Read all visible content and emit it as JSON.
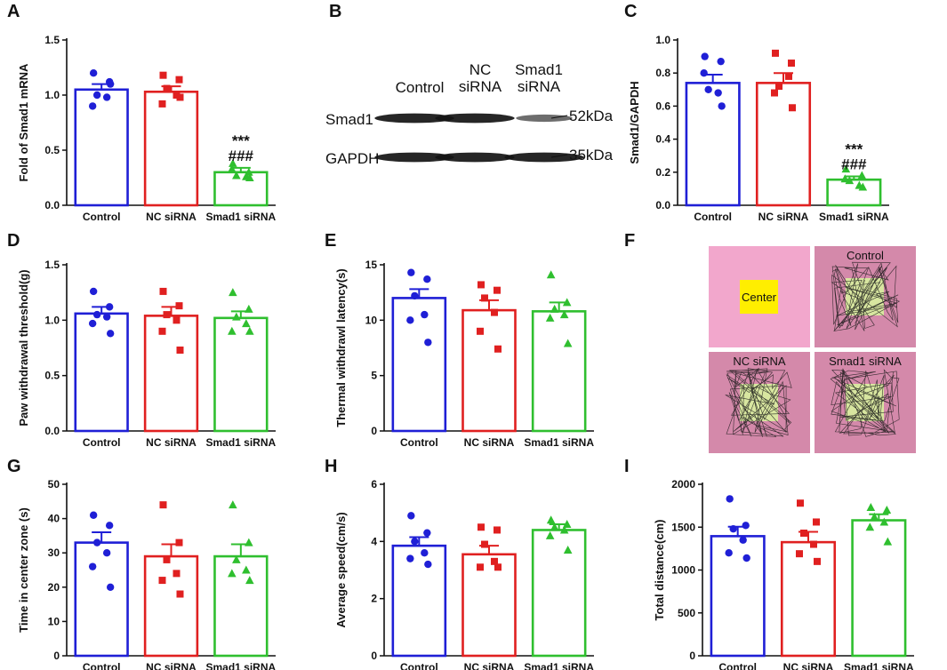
{
  "panel_labels": [
    "A",
    "B",
    "C",
    "D",
    "E",
    "F",
    "G",
    "H",
    "I"
  ],
  "colors": {
    "control": "#1f1fd6",
    "nc": "#e02020",
    "smad1": "#2fbf2f"
  },
  "chart_data": [
    {
      "id": "A",
      "type": "bar",
      "categories": [
        "Control",
        "NC siRNA",
        "Smad1 siRNA"
      ],
      "ylabel": "Fold of Smad1 mRNA",
      "ylim": [
        0,
        1.5
      ],
      "yticks": [
        "0.0",
        "0.5",
        "1.0",
        "1.5"
      ],
      "values": [
        1.05,
        1.03,
        0.3
      ],
      "errors": [
        0.05,
        0.05,
        0.04
      ],
      "points": [
        [
          1.2,
          1.12,
          1.0,
          0.98,
          0.9,
          1.1
        ],
        [
          1.18,
          1.14,
          1.06,
          1.0,
          0.92,
          0.98
        ],
        [
          0.38,
          0.3,
          0.27,
          0.26,
          0.33,
          0.25
        ]
      ],
      "annotations": [
        {
          "category": 2,
          "lines": [
            "***",
            "###"
          ]
        }
      ]
    },
    {
      "id": "C",
      "type": "bar",
      "categories": [
        "Control",
        "NC siRNA",
        "Smad1 siRNA"
      ],
      "ylabel": "Smad1/GAPDH",
      "ylim": [
        0,
        1.0
      ],
      "yticks": [
        "0.0",
        "0.2",
        "0.4",
        "0.6",
        "0.8",
        "1.0"
      ],
      "values": [
        0.74,
        0.74,
        0.155
      ],
      "errors": [
        0.05,
        0.06,
        0.02
      ],
      "points": [
        [
          0.9,
          0.87,
          0.7,
          0.68,
          0.8,
          0.6
        ],
        [
          0.92,
          0.86,
          0.72,
          0.78,
          0.68,
          0.59
        ],
        [
          0.22,
          0.18,
          0.15,
          0.12,
          0.16,
          0.11
        ]
      ],
      "annotations": [
        {
          "category": 2,
          "lines": [
            "***",
            "###"
          ]
        }
      ]
    },
    {
      "id": "D",
      "type": "bar",
      "categories": [
        "Control",
        "NC siRNA",
        "Smad1 siRNA"
      ],
      "ylabel": "Paw withdrawal threshold(g)",
      "ylim": [
        0,
        1.5
      ],
      "yticks": [
        "0.0",
        "0.5",
        "1.0",
        "1.5"
      ],
      "values": [
        1.06,
        1.04,
        1.02
      ],
      "errors": [
        0.06,
        0.08,
        0.06
      ],
      "points": [
        [
          1.26,
          1.12,
          1.05,
          1.03,
          0.97,
          0.88
        ],
        [
          1.26,
          1.13,
          1.05,
          1.0,
          0.9,
          0.73
        ],
        [
          1.25,
          1.1,
          1.03,
          0.97,
          0.9,
          0.9
        ]
      ],
      "annotations": []
    },
    {
      "id": "E",
      "type": "bar",
      "categories": [
        "Control",
        "NC siRNA",
        "Smad1 siRNA"
      ],
      "ylabel": "Thermal withdrawl latency(s)",
      "ylim": [
        0,
        15
      ],
      "yticks": [
        "0",
        "5",
        "10",
        "15"
      ],
      "values": [
        12.0,
        10.9,
        10.8
      ],
      "errors": [
        0.8,
        0.9,
        0.8
      ],
      "points": [
        [
          14.3,
          13.7,
          12.2,
          10.5,
          10.0,
          8.0
        ],
        [
          13.2,
          12.7,
          12.0,
          10.7,
          9.0,
          7.4
        ],
        [
          14.1,
          11.6,
          11.0,
          10.5,
          10.2,
          7.9
        ]
      ],
      "annotations": []
    },
    {
      "id": "G",
      "type": "bar",
      "categories": [
        "Control",
        "NC siRNA",
        "Smad1 siRNA"
      ],
      "ylabel": "Time in center zone (s)",
      "ylim": [
        0,
        50
      ],
      "yticks": [
        "0",
        "10",
        "20",
        "30",
        "40",
        "50"
      ],
      "values": [
        33,
        29,
        29
      ],
      "errors": [
        3.0,
        3.5,
        3.5
      ],
      "points": [
        [
          41,
          38,
          33,
          30,
          26,
          20
        ],
        [
          44,
          33,
          28,
          24,
          22,
          18
        ],
        [
          44,
          33,
          28,
          25,
          24,
          22
        ]
      ],
      "annotations": []
    },
    {
      "id": "H",
      "type": "bar",
      "categories": [
        "Control",
        "NC siRNA",
        "Smad1 siRNA"
      ],
      "ylabel": "Average speed(cm/s)",
      "ylim": [
        0,
        6
      ],
      "yticks": [
        "0",
        "2",
        "4",
        "6"
      ],
      "values": [
        3.85,
        3.55,
        4.4
      ],
      "errors": [
        0.3,
        0.3,
        0.2
      ],
      "points": [
        [
          4.9,
          4.3,
          4.0,
          3.6,
          3.4,
          3.2
        ],
        [
          4.5,
          4.4,
          3.9,
          3.3,
          3.1,
          3.1
        ],
        [
          4.75,
          4.6,
          4.5,
          4.4,
          4.2,
          3.7
        ]
      ],
      "annotations": []
    },
    {
      "id": "I",
      "type": "bar",
      "categories": [
        "Control",
        "NC siRNA",
        "Smad1 siRNA"
      ],
      "ylabel": "Total distance(cm)",
      "ylim": [
        0,
        2000
      ],
      "yticks": [
        "0",
        "500",
        "1000",
        "1500",
        "2000"
      ],
      "values": [
        1395,
        1325,
        1580
      ],
      "errors": [
        110,
        120,
        70
      ],
      "points": [
        [
          1830,
          1520,
          1480,
          1350,
          1200,
          1140
        ],
        [
          1780,
          1560,
          1430,
          1300,
          1190,
          1100
        ],
        [
          1730,
          1700,
          1620,
          1560,
          1500,
          1330
        ]
      ],
      "annotations": []
    }
  ],
  "western_blot": {
    "lanes": [
      [
        "Control"
      ],
      [
        "NC",
        "siRNA"
      ],
      [
        "Smad1",
        "siRNA"
      ]
    ],
    "rows": [
      {
        "name": "Smad1",
        "kda": "52kDa",
        "intensity": [
          0.95,
          0.95,
          0.45
        ]
      },
      {
        "name": "GAPDH",
        "kda": "35kDa",
        "intensity": [
          0.95,
          0.95,
          0.95
        ]
      }
    ]
  },
  "open_field": {
    "center_label": "Center",
    "tiles": [
      {
        "label": "Control"
      },
      {
        "label": "NC siRNA"
      },
      {
        "label": "Smad1 siRNA"
      }
    ],
    "colors": {
      "schematic": "#f2a7cc",
      "arena": "#d489aa",
      "center": "#ffee00",
      "center_zone": "#d8e6a0"
    }
  }
}
